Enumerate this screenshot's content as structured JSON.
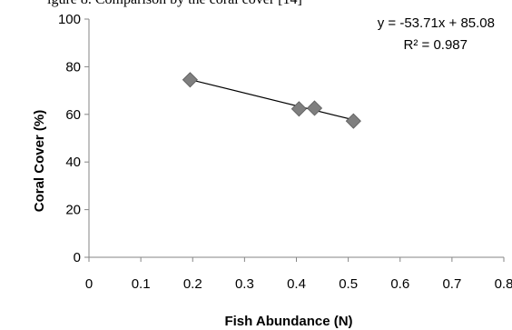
{
  "chart_data": {
    "type": "scatter",
    "title": "",
    "xlabel": "Fish Abundance (N)",
    "ylabel": "Coral Cover (%)",
    "xlim": [
      0,
      0.8
    ],
    "ylim": [
      0,
      100
    ],
    "xticks": [
      "0",
      "0.1",
      "0.2",
      "0.3",
      "0.4",
      "0.5",
      "0.6",
      "0.7",
      "0.8"
    ],
    "yticks": [
      "0",
      "20",
      "40",
      "60",
      "80",
      "100"
    ],
    "x_tick_values": [
      0,
      0.1,
      0.2,
      0.3,
      0.4,
      0.5,
      0.6,
      0.7,
      0.8
    ],
    "y_tick_values": [
      0,
      20,
      40,
      60,
      80,
      100
    ],
    "grid": false,
    "series": [
      {
        "points": [
          {
            "x": 0.195,
            "y": 74.5
          },
          {
            "x": 0.405,
            "y": 62.3
          },
          {
            "x": 0.435,
            "y": 62.6
          },
          {
            "x": 0.51,
            "y": 57.2
          }
        ],
        "marker": "diamond",
        "color": "#7f7f7f"
      }
    ],
    "trendline": {
      "slope": -53.71,
      "intercept": 85.08,
      "x_range": [
        0.195,
        0.51
      ],
      "equation": "y = -53.71x + 85.08",
      "r2_label": "R² = 0.987",
      "color": "#000000"
    }
  },
  "top_caption_fragment": "igure 8. Comparison by the coral cover [14]"
}
